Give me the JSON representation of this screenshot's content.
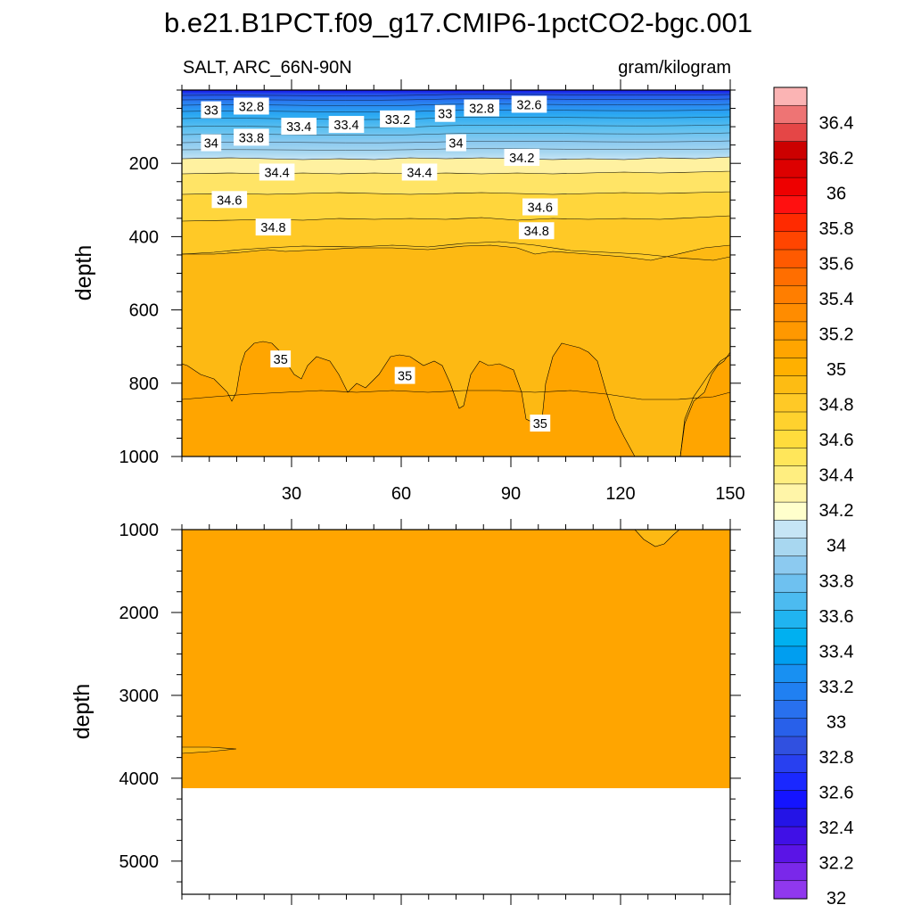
{
  "title": "b.e21.B1PCT.f09_g17.CMIP6-1pctCO2-bgc.001",
  "subtitle_left": "SALT, ARC_66N-90N",
  "subtitle_right": "gram/kilogram",
  "ylabel": "depth",
  "chart_data": [
    {
      "type": "contour",
      "panel": "upper",
      "ylabel": "depth",
      "xlim": [
        0,
        150
      ],
      "ylim": [
        1000,
        0
      ],
      "x_ticks": [
        30,
        60,
        90,
        120,
        150
      ],
      "y_ticks": [
        200,
        400,
        600,
        800,
        1000
      ],
      "contour_labels": [
        {
          "text": "33",
          "x": 8,
          "y": 55
        },
        {
          "text": "32.8",
          "x": 19,
          "y": 45
        },
        {
          "text": "33.4",
          "x": 32,
          "y": 100
        },
        {
          "text": "33.4",
          "x": 45,
          "y": 95
        },
        {
          "text": "33.2",
          "x": 59,
          "y": 80
        },
        {
          "text": "33",
          "x": 72,
          "y": 65
        },
        {
          "text": "32.8",
          "x": 82,
          "y": 50
        },
        {
          "text": "32.6",
          "x": 95,
          "y": 40
        },
        {
          "text": "34",
          "x": 8,
          "y": 145
        },
        {
          "text": "33.8",
          "x": 19,
          "y": 130
        },
        {
          "text": "34",
          "x": 75,
          "y": 145
        },
        {
          "text": "34.2",
          "x": 93,
          "y": 185
        },
        {
          "text": "34.4",
          "x": 26,
          "y": 225
        },
        {
          "text": "34.4",
          "x": 65,
          "y": 225
        },
        {
          "text": "34.6",
          "x": 13,
          "y": 300
        },
        {
          "text": "34.6",
          "x": 98,
          "y": 320
        },
        {
          "text": "34.8",
          "x": 25,
          "y": 375
        },
        {
          "text": "34.8",
          "x": 97,
          "y": 385
        },
        {
          "text": "35",
          "x": 27,
          "y": 735
        },
        {
          "text": "35",
          "x": 61,
          "y": 780
        },
        {
          "text": "35",
          "x": 98,
          "y": 910
        }
      ]
    },
    {
      "type": "contour",
      "panel": "lower",
      "ylabel": "depth",
      "xlim": [
        0,
        150
      ],
      "ylim": [
        5400,
        1000
      ],
      "x_ticks": [
        30,
        60,
        90,
        120,
        150
      ],
      "y_ticks": [
        1000,
        2000,
        3000,
        4000,
        5000
      ],
      "ocean_floor_depth": 4120
    }
  ],
  "colorbar": {
    "labels": [
      "36.4",
      "36.2",
      "36",
      "35.8",
      "35.6",
      "35.4",
      "35.2",
      "35",
      "34.8",
      "34.6",
      "34.4",
      "34.2",
      "34",
      "33.8",
      "33.6",
      "33.4",
      "33.2",
      "33",
      "32.8",
      "32.6",
      "32.4",
      "32.2",
      "32"
    ],
    "colors": [
      "#fbb4b4",
      "#ee7474",
      "#e54646",
      "#cc0000",
      "#dd0000",
      "#ee0000",
      "#ff1010",
      "#ff2a00",
      "#ff4500",
      "#ff5a00",
      "#ff6e00",
      "#ff7e00",
      "#ff8c00",
      "#ff9800",
      "#ffa500",
      "#ffb000",
      "#fdbc13",
      "#ffc926",
      "#ffd22e",
      "#ffdc3c",
      "#ffe65a",
      "#ffee80",
      "#fff5a8",
      "#ffffcc",
      "#c6e5f5",
      "#a8d7f0",
      "#8ccaf0",
      "#6ec1f0",
      "#4cbbf0",
      "#20b4f0",
      "#00b0f0",
      "#009ef0",
      "#1890f2",
      "#2080f2",
      "#2870ee",
      "#2860ea",
      "#3050e0",
      "#2840f0",
      "#1a28ff",
      "#1414ff",
      "#2414e6",
      "#4010e6",
      "#5a14e6",
      "#7a28ea",
      "#9038ee"
    ]
  }
}
